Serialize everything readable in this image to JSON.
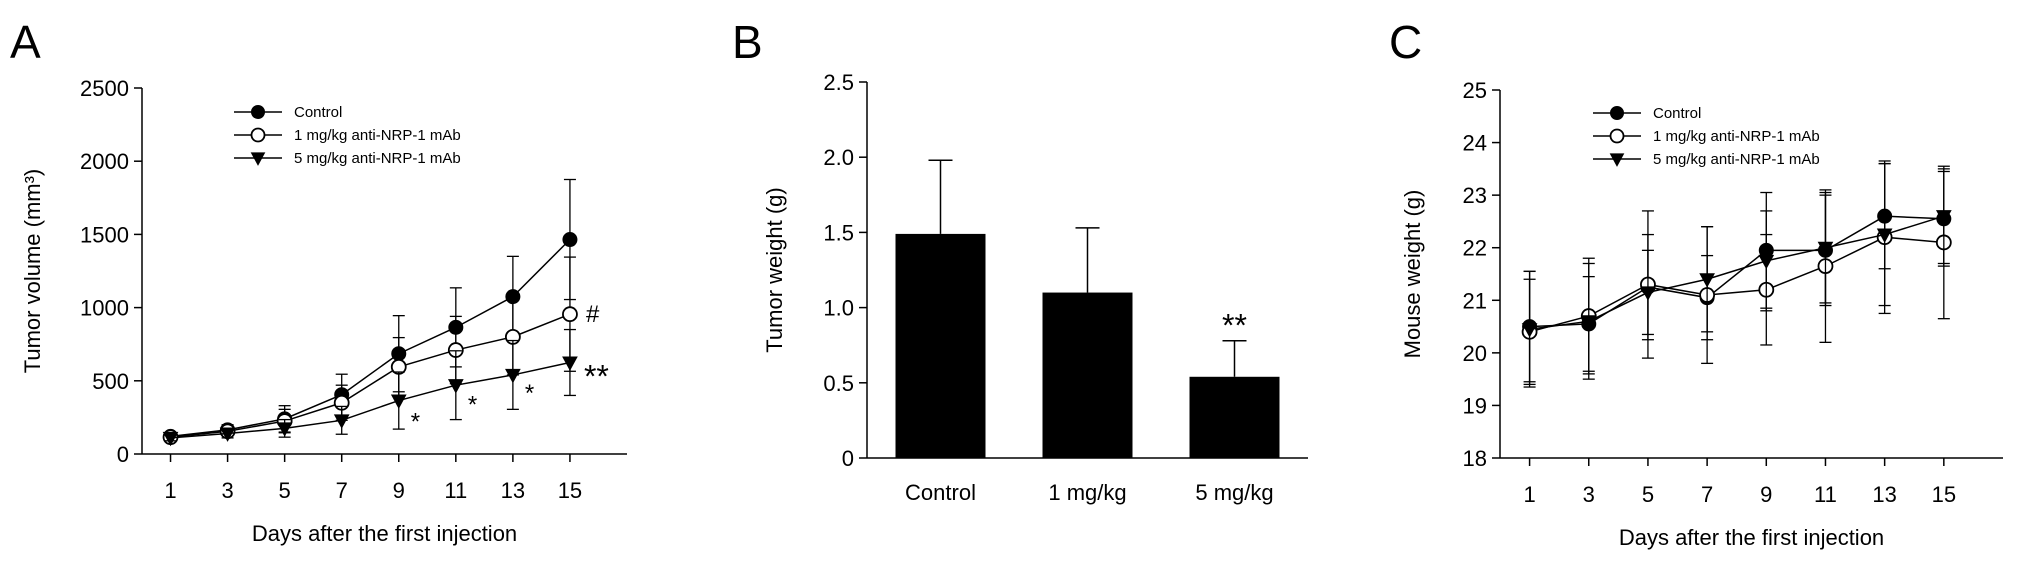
{
  "chart_data": [
    {
      "panel": "A",
      "type": "line",
      "xlabel": "Days after the first injection",
      "ylabel": "Tumor volume (mm³)",
      "x": [
        1,
        3,
        5,
        7,
        9,
        11,
        13,
        15
      ],
      "xlim": [
        0,
        17
      ],
      "ylim": [
        0,
        2500
      ],
      "yticks": [
        0,
        500,
        1000,
        1500,
        2000,
        2500
      ],
      "legend_position": "top-left",
      "series": [
        {
          "name": "Control",
          "marker": "filled-circle",
          "values": [
            120,
            165,
            240,
            405,
            685,
            865,
            1075,
            1465
          ],
          "error": [
            25,
            35,
            90,
            140,
            260,
            270,
            275,
            410
          ]
        },
        {
          "name": "1 mg/kg anti-NRP-1 mAb",
          "marker": "open-circle",
          "values": [
            115,
            155,
            225,
            350,
            595,
            710,
            800,
            955
          ],
          "error": [
            25,
            30,
            80,
            120,
            200,
            230,
            260,
            390
          ]
        },
        {
          "name": "5 mg/kg anti-NRP-1 mAb",
          "marker": "filled-triangle-down",
          "values": [
            110,
            140,
            175,
            230,
            365,
            470,
            540,
            625
          ],
          "error": [
            20,
            30,
            60,
            95,
            195,
            235,
            235,
            225
          ]
        }
      ],
      "annotations": [
        {
          "text": "#",
          "x": 15,
          "y": 955
        },
        {
          "text": "*",
          "x": 9,
          "y": 305
        },
        {
          "text": "*",
          "x": 11,
          "y": 420
        },
        {
          "text": "*",
          "x": 13,
          "y": 500
        },
        {
          "text": "**",
          "x": 15,
          "y": 590
        }
      ]
    },
    {
      "panel": "B",
      "type": "bar",
      "xlabel": "",
      "ylabel": "Tumor weight (g)",
      "categories": [
        "Control",
        "1 mg/kg",
        "5 mg/kg"
      ],
      "values": [
        1.49,
        1.1,
        0.54
      ],
      "error": [
        0.49,
        0.43,
        0.24
      ],
      "ylim": [
        0,
        2.5
      ],
      "yticks": [
        "0",
        "0.5",
        "1.0",
        "1.5",
        "2.0",
        "2.5"
      ],
      "annotations": [
        {
          "text": "**",
          "category": "5 mg/kg"
        }
      ]
    },
    {
      "panel": "C",
      "type": "line",
      "xlabel": "Days after the first injection",
      "ylabel": "Mouse weight (g)",
      "x": [
        1,
        3,
        5,
        7,
        9,
        11,
        13,
        15
      ],
      "xlim": [
        0,
        17
      ],
      "ylim": [
        18,
        25
      ],
      "yticks": [
        18,
        19,
        20,
        21,
        22,
        23,
        24,
        25
      ],
      "legend_position": "top-left",
      "series": [
        {
          "name": "Control",
          "marker": "filled-circle",
          "values": [
            20.5,
            20.55,
            21.25,
            21.05,
            21.95,
            21.95,
            22.6,
            22.55
          ],
          "error": [
            1.05,
            0.9,
            1.0,
            0.8,
            1.1,
            1.05,
            1.0,
            0.9
          ]
        },
        {
          "name": "1 mg/kg anti-NRP-1 mAb",
          "marker": "open-circle",
          "values": [
            20.4,
            20.7,
            21.3,
            21.1,
            21.2,
            21.65,
            22.2,
            22.1
          ],
          "error": [
            1.0,
            1.1,
            1.4,
            1.3,
            1.05,
            1.45,
            1.45,
            1.45
          ]
        },
        {
          "name": "5 mg/kg anti-NRP-1 mAb",
          "marker": "filled-triangle-down",
          "values": [
            20.45,
            20.6,
            21.15,
            21.4,
            21.75,
            22.0,
            22.25,
            22.6
          ],
          "error": [
            1.1,
            1.1,
            0.8,
            1.0,
            0.95,
            1.05,
            1.35,
            0.9
          ]
        }
      ]
    }
  ]
}
